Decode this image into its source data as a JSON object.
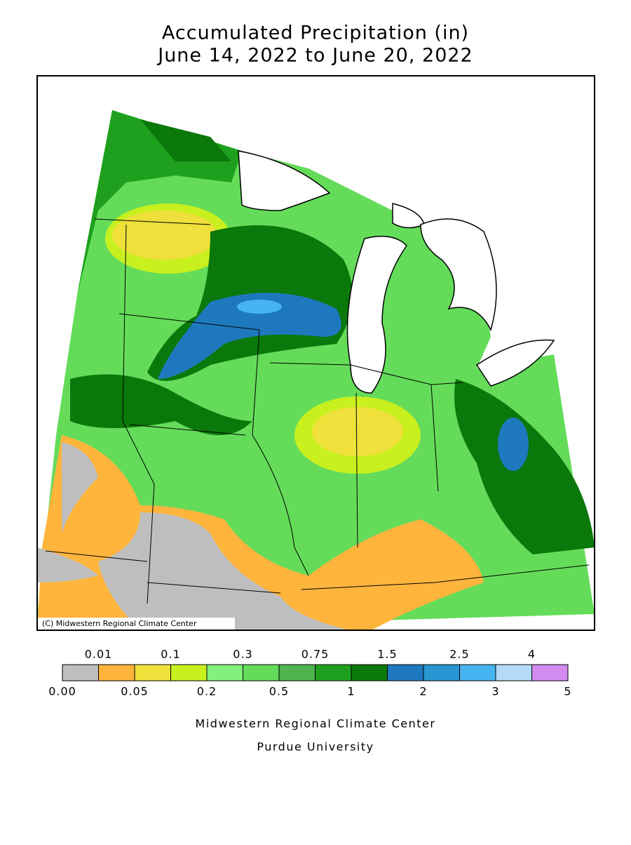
{
  "title": [
    "Accumulated Precipitation (in)",
    "June 14, 2022 to June 20, 2022"
  ],
  "map": {
    "copyright": "(C) Midwestern Regional Climate Center"
  },
  "legend": {
    "colors": [
      "#bebebe",
      "#ffb43c",
      "#f0e03c",
      "#c8f01e",
      "#82f07a",
      "#64dc5a",
      "#50b450",
      "#1ea01e",
      "#0a780a",
      "#1e78be",
      "#2896d2",
      "#46b4f0",
      "#b4dcfa",
      "#d28cf0"
    ],
    "upper_labels": [
      "0.01",
      "0.1",
      "0.3",
      "0.75",
      "1.5",
      "2.5",
      "4"
    ],
    "lower_labels": [
      "0.00",
      "0.05",
      "0.2",
      "0.5",
      "1",
      "2",
      "3",
      "5"
    ]
  },
  "footer": [
    "Midwestern Regional Climate Center",
    "Purdue University"
  ]
}
